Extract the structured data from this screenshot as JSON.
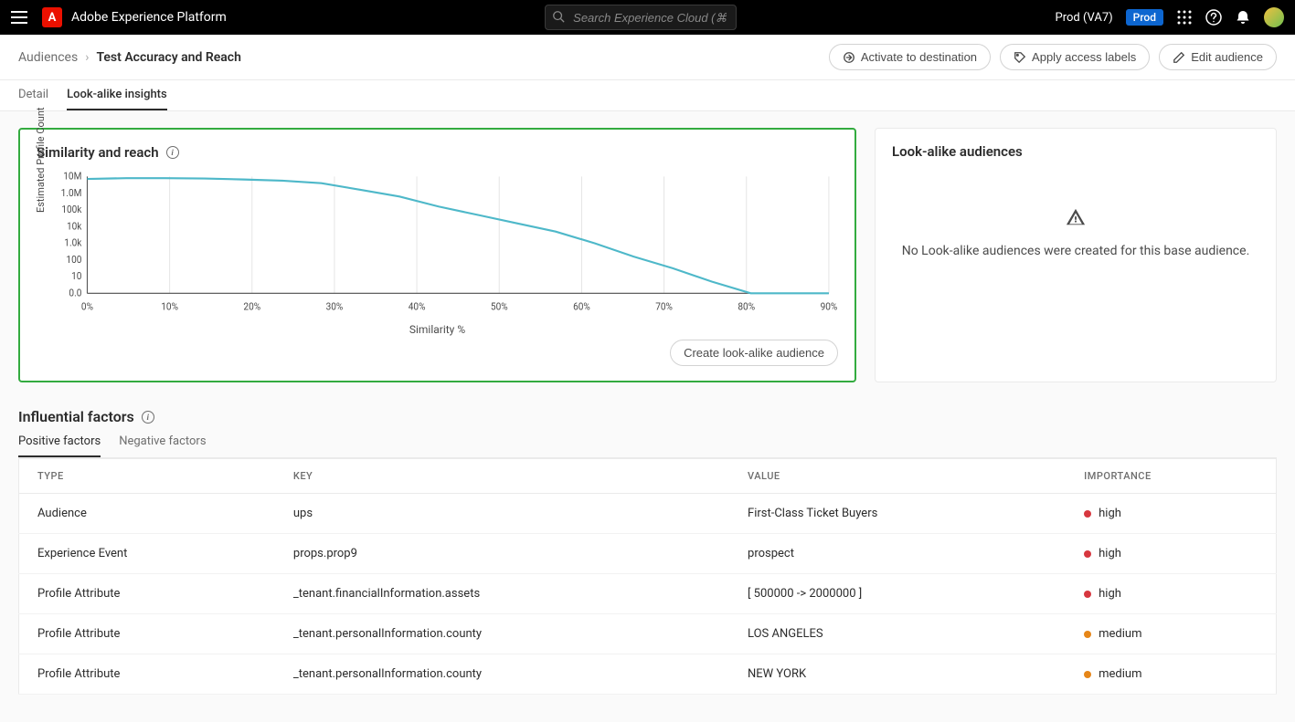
{
  "header": {
    "app_name": "Adobe Experience Platform",
    "search_placeholder": "Search Experience Cloud (⌘+/)",
    "env_label": "Prod (VA7)",
    "env_badge": "Prod"
  },
  "breadcrumb": {
    "parent": "Audiences",
    "current": "Test Accuracy and Reach"
  },
  "actions": {
    "activate": "Activate to destination",
    "apply_labels": "Apply access labels",
    "edit": "Edit audience"
  },
  "tabs": {
    "detail": "Detail",
    "insights": "Look-alike insights"
  },
  "similarity_panel": {
    "title": "Similarity and reach",
    "create_btn": "Create look-alike audience",
    "chart": {
      "type": "line",
      "ylabel": "Estimated Profile Count",
      "xlabel": "Similarity %",
      "line_color": "#4eb8c9",
      "line_width": 2,
      "grid_color": "#e5e5e5",
      "axis_color": "#4b4b4b",
      "tick_font": 10,
      "y_ticks": [
        "10M",
        "1.0M",
        "100k",
        "10k",
        "1.0k",
        "100",
        "10",
        "0.0"
      ],
      "x_ticks": [
        "0%",
        "10%",
        "20%",
        "30%",
        "40%",
        "50%",
        "60%",
        "70%",
        "80%",
        "90%"
      ],
      "y_values_log_index": [
        0.15,
        0.1,
        0.1,
        0.12,
        0.18,
        0.25,
        0.4,
        0.8,
        1.2,
        1.8,
        2.3,
        2.8,
        3.3,
        4.0,
        4.8,
        5.5,
        6.3,
        7.0,
        7.0,
        7.0
      ],
      "y_scale_max": 7.0,
      "x_count": 20
    }
  },
  "lookalike_panel": {
    "title": "Look-alike audiences",
    "empty_msg": "No Look-alike audiences were created for this base audience."
  },
  "factors": {
    "title": "Influential factors",
    "tabs": {
      "positive": "Positive factors",
      "negative": "Negative factors"
    },
    "columns": [
      "TYPE",
      "KEY",
      "VALUE",
      "IMPORTANCE"
    ],
    "importance_colors": {
      "high": "#d7373f",
      "medium": "#e68619"
    },
    "rows": [
      {
        "type": "Audience",
        "key": "ups",
        "value": "First-Class Ticket Buyers",
        "importance": "high"
      },
      {
        "type": "Experience Event",
        "key": "props.prop9",
        "value": "prospect",
        "importance": "high"
      },
      {
        "type": "Profile Attribute",
        "key": "_tenant.financialInformation.assets",
        "value": "[ 500000 -> 2000000 ]",
        "importance": "high"
      },
      {
        "type": "Profile Attribute",
        "key": "_tenant.personalInformation.county",
        "value": "LOS ANGELES",
        "importance": "medium"
      },
      {
        "type": "Profile Attribute",
        "key": "_tenant.personalInformation.county",
        "value": "NEW YORK",
        "importance": "medium"
      }
    ]
  }
}
